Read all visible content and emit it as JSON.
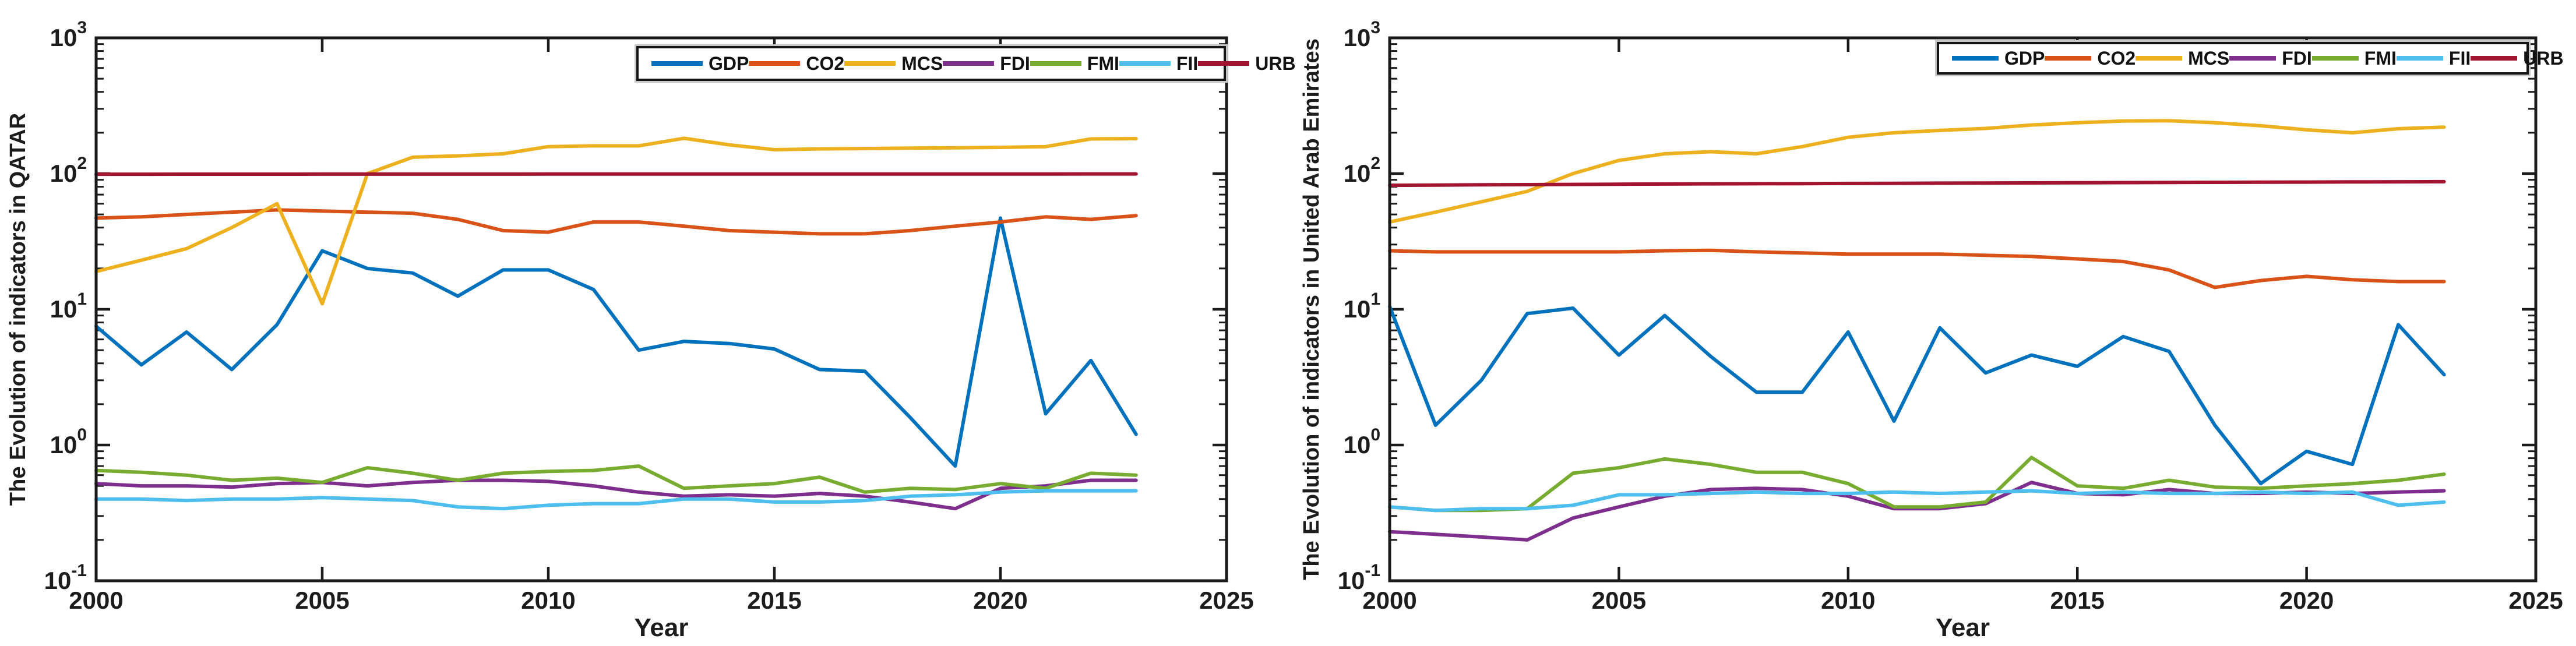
{
  "figure": {
    "background": "#ffffff",
    "type": "dual line charts, log y-scale"
  },
  "colors": {
    "GDP": "#0072BD",
    "CO2": "#D95319",
    "MCS": "#EDB120",
    "FDI": "#7E2F8E",
    "FMI": "#77AC30",
    "FII": "#4DBEEE",
    "URB": "#A2142F",
    "axis": "#1a1a1a",
    "text": "#1c1c1c"
  },
  "chart_data": [
    {
      "type": "line",
      "title": "",
      "ylabel": "The Evolution of indicators in QATAR",
      "xlabel": "Year",
      "xlim": [
        2000,
        2025
      ],
      "ylim_log": [
        0.1,
        1000
      ],
      "x_ticks": [
        2000,
        2005,
        2010,
        2015,
        2020,
        2025
      ],
      "y_tick_exponents": [
        3,
        2,
        1,
        0,
        -1
      ],
      "grid": false,
      "legend_position": "top-right-horizontal",
      "legend": [
        "GDP",
        "CO2",
        "MCS",
        "FDI",
        "FMI",
        "FII",
        "URB"
      ],
      "years": [
        2000,
        2001,
        2002,
        2003,
        2004,
        2005,
        2006,
        2007,
        2008,
        2009,
        2010,
        2011,
        2012,
        2013,
        2014,
        2015,
        2016,
        2017,
        2018,
        2019,
        2020,
        2021,
        2022,
        2023
      ],
      "series": [
        {
          "name": "GDP",
          "color": "#0072BD",
          "values": [
            7.5,
            3.9,
            6.8,
            3.6,
            7.7,
            27,
            20,
            18.5,
            12.5,
            19.5,
            19.5,
            14,
            5.0,
            5.8,
            5.6,
            5.1,
            3.6,
            3.5,
            1.6,
            0.7,
            47,
            1.7,
            4.2,
            1.2
          ]
        },
        {
          "name": "CO2",
          "color": "#D95319",
          "values": [
            47,
            48,
            50,
            52,
            54,
            53,
            52,
            51,
            46,
            38,
            37,
            44,
            44,
            41,
            38,
            37,
            36,
            36,
            38,
            41,
            44,
            48,
            46,
            49
          ]
        },
        {
          "name": "MCS",
          "color": "#EDB120",
          "values": [
            19,
            23,
            28,
            40,
            60,
            11,
            100,
            132,
            135,
            140,
            158,
            160,
            160,
            182,
            163,
            150,
            152,
            153,
            154,
            155,
            156,
            158,
            180,
            181
          ]
        },
        {
          "name": "FDI",
          "color": "#7E2F8E",
          "values": [
            0.52,
            0.5,
            0.5,
            0.49,
            0.52,
            0.53,
            0.5,
            0.53,
            0.55,
            0.55,
            0.54,
            0.5,
            0.45,
            0.42,
            0.43,
            0.42,
            0.44,
            0.42,
            0.38,
            0.34,
            0.48,
            0.5,
            0.55,
            0.55
          ]
        },
        {
          "name": "FMI",
          "color": "#77AC30",
          "values": [
            0.65,
            0.63,
            0.6,
            0.55,
            0.57,
            0.53,
            0.68,
            0.62,
            0.55,
            0.62,
            0.64,
            0.65,
            0.7,
            0.48,
            0.5,
            0.52,
            0.58,
            0.45,
            0.48,
            0.47,
            0.52,
            0.48,
            0.62,
            0.6
          ]
        },
        {
          "name": "FII",
          "color": "#4DBEEE",
          "values": [
            0.4,
            0.4,
            0.39,
            0.4,
            0.4,
            0.41,
            0.4,
            0.39,
            0.35,
            0.34,
            0.36,
            0.37,
            0.37,
            0.4,
            0.4,
            0.38,
            0.38,
            0.39,
            0.42,
            0.43,
            0.45,
            0.46,
            0.46,
            0.46
          ]
        },
        {
          "name": "URB",
          "color": "#A2142F",
          "values": [
            98.9,
            98.9,
            99.0,
            99.0,
            99.0,
            99.1,
            99.1,
            99.1,
            99.1,
            99.1,
            99.2,
            99.2,
            99.2,
            99.2,
            99.2,
            99.2,
            99.3,
            99.3,
            99.3,
            99.3,
            99.3,
            99.3,
            99.4,
            99.4
          ]
        }
      ]
    },
    {
      "type": "line",
      "title": "",
      "ylabel": "The Evolution of indicators in United Arab Emirates",
      "xlabel": "Year",
      "xlim": [
        2000,
        2025
      ],
      "ylim_log": [
        0.1,
        1000
      ],
      "x_ticks": [
        2000,
        2005,
        2010,
        2015,
        2020,
        2025
      ],
      "y_tick_exponents": [
        3,
        2,
        1,
        0,
        -1
      ],
      "grid": false,
      "legend_position": "top-right-horizontal",
      "legend": [
        "GDP",
        "CO2",
        "MCS",
        "FDI",
        "FMI",
        "FII",
        "URB"
      ],
      "years": [
        2000,
        2001,
        2002,
        2003,
        2004,
        2005,
        2006,
        2007,
        2008,
        2009,
        2010,
        2011,
        2012,
        2013,
        2014,
        2015,
        2016,
        2017,
        2018,
        2019,
        2020,
        2021,
        2022,
        2023
      ],
      "series": [
        {
          "name": "GDP",
          "color": "#0072BD",
          "values": [
            10.5,
            1.4,
            3.0,
            9.3,
            10.2,
            4.6,
            9.0,
            4.5,
            2.45,
            2.45,
            6.8,
            1.5,
            7.3,
            3.4,
            4.6,
            3.8,
            6.3,
            4.9,
            1.4,
            0.52,
            0.9,
            0.72,
            7.7,
            3.3
          ]
        },
        {
          "name": "CO2",
          "color": "#D95319",
          "values": [
            27,
            26.5,
            26.5,
            26.5,
            26.5,
            26.5,
            27,
            27.2,
            26.5,
            26,
            25.5,
            25.5,
            25.5,
            25,
            24.5,
            23.5,
            22.5,
            19.5,
            14.5,
            16.3,
            17.5,
            16.5,
            16,
            16
          ]
        },
        {
          "name": "MCS",
          "color": "#EDB120",
          "values": [
            44,
            52,
            62,
            74,
            100,
            125,
            140,
            145,
            140,
            158,
            185,
            200,
            208,
            215,
            228,
            237,
            244,
            245,
            237,
            225,
            210,
            200,
            214,
            220
          ]
        },
        {
          "name": "FDI",
          "color": "#7E2F8E",
          "values": [
            0.23,
            0.22,
            0.21,
            0.2,
            0.29,
            0.35,
            0.42,
            0.47,
            0.48,
            0.47,
            0.42,
            0.34,
            0.34,
            0.37,
            0.53,
            0.44,
            0.43,
            0.47,
            0.44,
            0.44,
            0.45,
            0.44,
            0.45,
            0.46
          ]
        },
        {
          "name": "FMI",
          "color": "#77AC30",
          "values": [
            0.35,
            0.33,
            0.33,
            0.34,
            0.62,
            0.68,
            0.79,
            0.72,
            0.63,
            0.63,
            0.52,
            0.35,
            0.35,
            0.38,
            0.81,
            0.5,
            0.48,
            0.55,
            0.49,
            0.48,
            0.5,
            0.52,
            0.55,
            0.61
          ]
        },
        {
          "name": "FII",
          "color": "#4DBEEE",
          "values": [
            0.35,
            0.33,
            0.34,
            0.34,
            0.36,
            0.43,
            0.43,
            0.44,
            0.45,
            0.44,
            0.44,
            0.45,
            0.44,
            0.45,
            0.46,
            0.44,
            0.45,
            0.44,
            0.44,
            0.45,
            0.44,
            0.45,
            0.36,
            0.38
          ]
        },
        {
          "name": "URB",
          "color": "#A2142F",
          "values": [
            82,
            82.3,
            82.6,
            82.9,
            83.2,
            83.5,
            83.8,
            84.0,
            84.2,
            84.4,
            84.6,
            84.8,
            85.0,
            85.2,
            85.4,
            85.6,
            85.8,
            86.0,
            86.2,
            86.4,
            86.6,
            86.8,
            87.0,
            87.2
          ]
        }
      ]
    }
  ]
}
